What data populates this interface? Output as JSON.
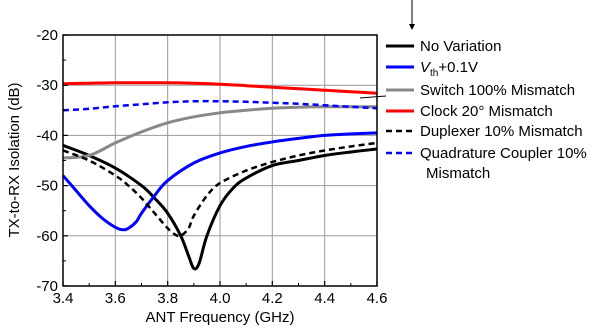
{
  "chart_data": {
    "type": "line",
    "xlabel": "ANT Frequency (GHz)",
    "ylabel": "TX-to-RX Isolation (dB)",
    "xlim": [
      3.4,
      4.6
    ],
    "ylim": [
      -70,
      -20
    ],
    "xticks": [
      "3.4",
      "3.6",
      "3.8",
      "4.0",
      "4.2",
      "4.4",
      "4.6"
    ],
    "yticks": [
      "-70",
      "-60",
      "-50",
      "-40",
      "-30",
      "-20"
    ],
    "grid": true,
    "legend_placement": "right, outside plot",
    "series": [
      {
        "name": "No Variation",
        "color": "#000000",
        "dash": "solid",
        "x": [
          3.4,
          3.5,
          3.6,
          3.7,
          3.75,
          3.8,
          3.85,
          3.88,
          3.9,
          3.92,
          3.95,
          4.0,
          4.05,
          4.1,
          4.2,
          4.3,
          4.4,
          4.5,
          4.6
        ],
        "y": [
          -42,
          -44,
          -46.5,
          -50,
          -52.5,
          -55.5,
          -60,
          -64,
          -66.5,
          -65.5,
          -60,
          -54,
          -50.5,
          -48.5,
          -46,
          -45,
          -44,
          -43.3,
          -42.7
        ]
      },
      {
        "name_parts": [
          "V",
          "th",
          "+0.1V"
        ],
        "color": "#0000ff",
        "dash": "solid",
        "x": [
          3.4,
          3.45,
          3.5,
          3.55,
          3.6,
          3.63,
          3.65,
          3.68,
          3.7,
          3.75,
          3.8,
          3.9,
          4.0,
          4.1,
          4.2,
          4.3,
          4.4,
          4.5,
          4.6
        ],
        "y": [
          -48,
          -51,
          -54,
          -56.5,
          -58.3,
          -58.8,
          -58.5,
          -57.2,
          -55.5,
          -52,
          -49,
          -45.5,
          -43.5,
          -42.2,
          -41.3,
          -40.6,
          -40,
          -39.7,
          -39.5
        ]
      },
      {
        "name": "Switch 100% Mismatch",
        "color": "#888888",
        "dash": "solid",
        "x": [
          3.4,
          3.5,
          3.6,
          3.7,
          3.8,
          3.9,
          4.0,
          4.1,
          4.2,
          4.3,
          4.4,
          4.5,
          4.6
        ],
        "y": [
          -44.5,
          -44,
          -41.5,
          -39.3,
          -37.5,
          -36.3,
          -35.5,
          -35,
          -34.6,
          -34.4,
          -34.3,
          -34.3,
          -34.3
        ]
      },
      {
        "name": "Clock 20° Mismatch",
        "color": "#ff0000",
        "dash": "solid",
        "x": [
          3.4,
          3.5,
          3.6,
          3.7,
          3.8,
          3.9,
          4.0,
          4.1,
          4.2,
          4.3,
          4.4,
          4.5,
          4.6
        ],
        "y": [
          -29.7,
          -29.6,
          -29.5,
          -29.5,
          -29.5,
          -29.6,
          -29.8,
          -30.1,
          -30.4,
          -30.7,
          -31,
          -31.3,
          -31.6
        ]
      },
      {
        "name": "Duplexer 10% Mismatch",
        "color": "#000000",
        "dash": "dashed",
        "x": [
          3.4,
          3.5,
          3.6,
          3.65,
          3.7,
          3.75,
          3.8,
          3.83,
          3.85,
          3.88,
          3.9,
          3.95,
          4.0,
          4.1,
          4.2,
          4.3,
          4.4,
          4.5,
          4.6
        ],
        "y": [
          -43,
          -45,
          -48,
          -50,
          -52.5,
          -55.5,
          -58.5,
          -59.8,
          -60,
          -58.5,
          -56,
          -52,
          -49.5,
          -47,
          -45.3,
          -44,
          -43,
          -42.2,
          -41.5
        ]
      },
      {
        "name": "Quadrature Coupler 10% Mismatch",
        "color": "#0000ff",
        "dash": "dashed",
        "x": [
          3.4,
          3.5,
          3.6,
          3.7,
          3.8,
          3.9,
          4.0,
          4.1,
          4.2,
          4.3,
          4.4,
          4.5,
          4.6
        ],
        "y": [
          -35,
          -34.7,
          -34.2,
          -33.8,
          -33.4,
          -33.2,
          -33.2,
          -33.3,
          -33.5,
          -33.7,
          -34,
          -34.3,
          -34.6
        ]
      }
    ],
    "legend": {
      "labels": [
        "No Variation",
        "",
        "Switch 100% Mismatch",
        "Clock 20° Mismatch",
        "Duplexer 10% Mismatch",
        "Quadrature Coupler 10%"
      ],
      "label_continuation": "Mismatch",
      "vth_main": "V",
      "vth_sub": "th",
      "vth_rest": "+0.1V"
    }
  }
}
